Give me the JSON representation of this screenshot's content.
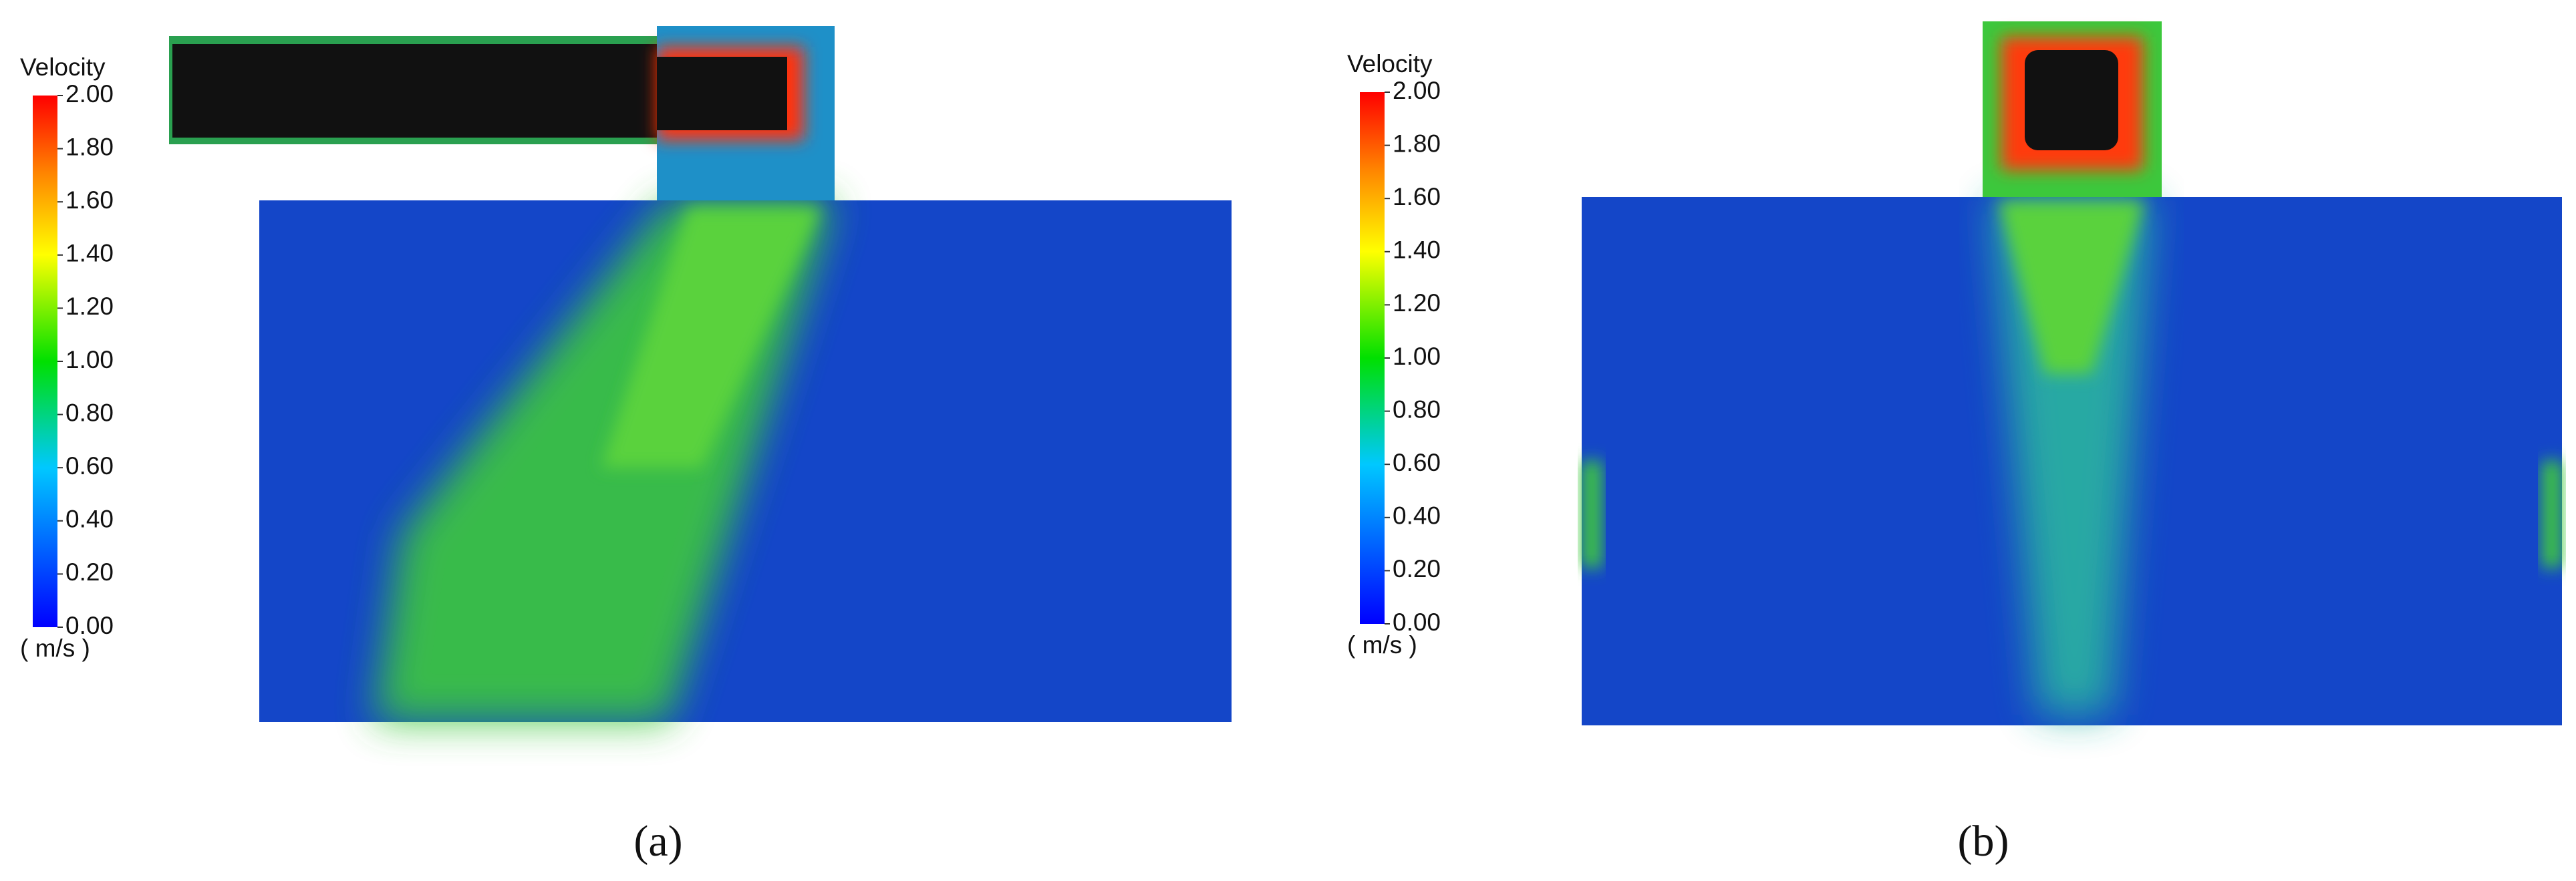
{
  "panels": [
    {
      "caption": "(a)",
      "colorbar": {
        "title": "Velocity",
        "unit": "( m/s )",
        "range": [
          0,
          2
        ],
        "ticks": [
          {
            "value": 0,
            "label": "0.00"
          },
          {
            "value": 0.2,
            "label": "0.20"
          },
          {
            "value": 0.4,
            "label": "0.40"
          },
          {
            "value": 0.6,
            "label": "0.60"
          },
          {
            "value": 0.8,
            "label": "0.80"
          },
          {
            "value": 1,
            "label": "1.00"
          },
          {
            "value": 1.2,
            "label": "1.20"
          },
          {
            "value": 1.4,
            "label": "1.40"
          },
          {
            "value": 1.6,
            "label": "1.60"
          },
          {
            "value": 1.8,
            "label": "1.80"
          },
          {
            "value": 2,
            "label": "2.00"
          }
        ]
      }
    },
    {
      "caption": "(b)",
      "colorbar": {
        "title": "Velocity",
        "unit": "( m/s )",
        "range": [
          0,
          2
        ],
        "ticks": [
          {
            "value": 0,
            "label": "0.00"
          },
          {
            "value": 0.2,
            "label": "0.20"
          },
          {
            "value": 0.4,
            "label": "0.40"
          },
          {
            "value": 0.6,
            "label": "0.60"
          },
          {
            "value": 0.8,
            "label": "0.80"
          },
          {
            "value": 1,
            "label": "1.00"
          },
          {
            "value": 1.2,
            "label": "1.20"
          },
          {
            "value": 1.4,
            "label": "1.40"
          },
          {
            "value": 1.6,
            "label": "1.60"
          },
          {
            "value": 1.8,
            "label": "1.80"
          },
          {
            "value": 2,
            "label": "2.00"
          }
        ]
      }
    }
  ]
}
